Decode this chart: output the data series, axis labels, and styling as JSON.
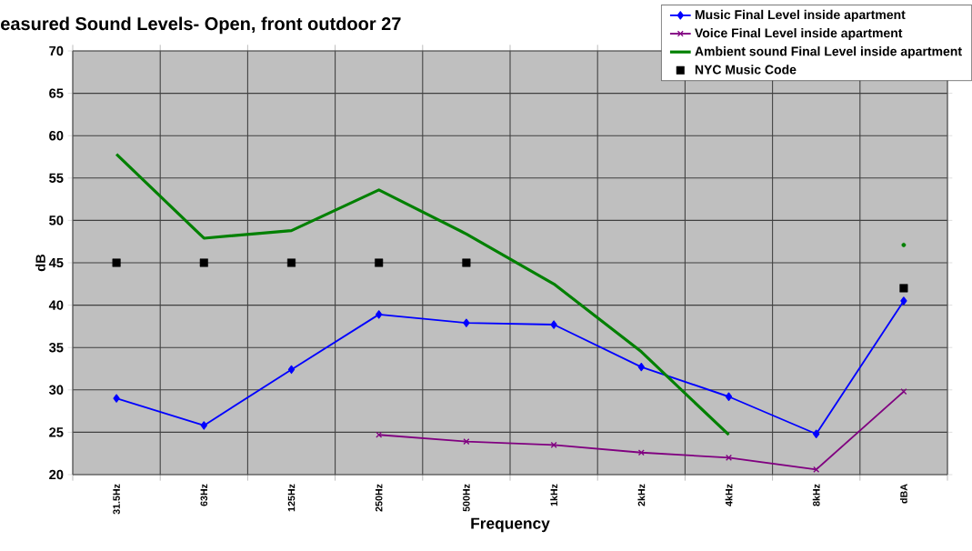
{
  "chart_data": {
    "type": "line",
    "title": "easured Sound Levels- Open, front outdoor 27",
    "xlabel": "Frequency",
    "ylabel": "dB",
    "categories": [
      "31.5Hz",
      "63Hz",
      "125Hz",
      "250Hz",
      "500Hz",
      "1kHz",
      "2kHz",
      "4kHz",
      "8kHz",
      "dBA"
    ],
    "series": [
      {
        "name": "Music Final Level inside apartment",
        "color": "#0000ff",
        "marker": "diamond",
        "values": [
          29.0,
          25.8,
          32.4,
          38.9,
          37.9,
          37.7,
          32.7,
          29.2,
          24.8,
          40.5
        ]
      },
      {
        "name": "Voice Final Level inside apartment",
        "color": "#800080",
        "marker": "cross",
        "values": [
          null,
          null,
          null,
          24.7,
          23.9,
          23.5,
          22.6,
          22.0,
          20.6,
          29.8
        ]
      },
      {
        "name": "Ambient sound  Final Level inside apartment",
        "color": "#008000",
        "marker": "none",
        "values": [
          57.8,
          47.9,
          48.8,
          53.6,
          48.4,
          42.5,
          34.5,
          24.7,
          null,
          47.1
        ]
      },
      {
        "name": "NYC Music Code",
        "type": "scatter",
        "color": "#000000",
        "marker": "square",
        "values": [
          45,
          45,
          45,
          45,
          45,
          null,
          null,
          null,
          null,
          42
        ]
      }
    ],
    "ylim": [
      20,
      70
    ],
    "yticks": [
      20,
      25,
      30,
      35,
      40,
      45,
      50,
      55,
      60,
      65,
      70
    ],
    "grid": true,
    "legend": "top right"
  }
}
